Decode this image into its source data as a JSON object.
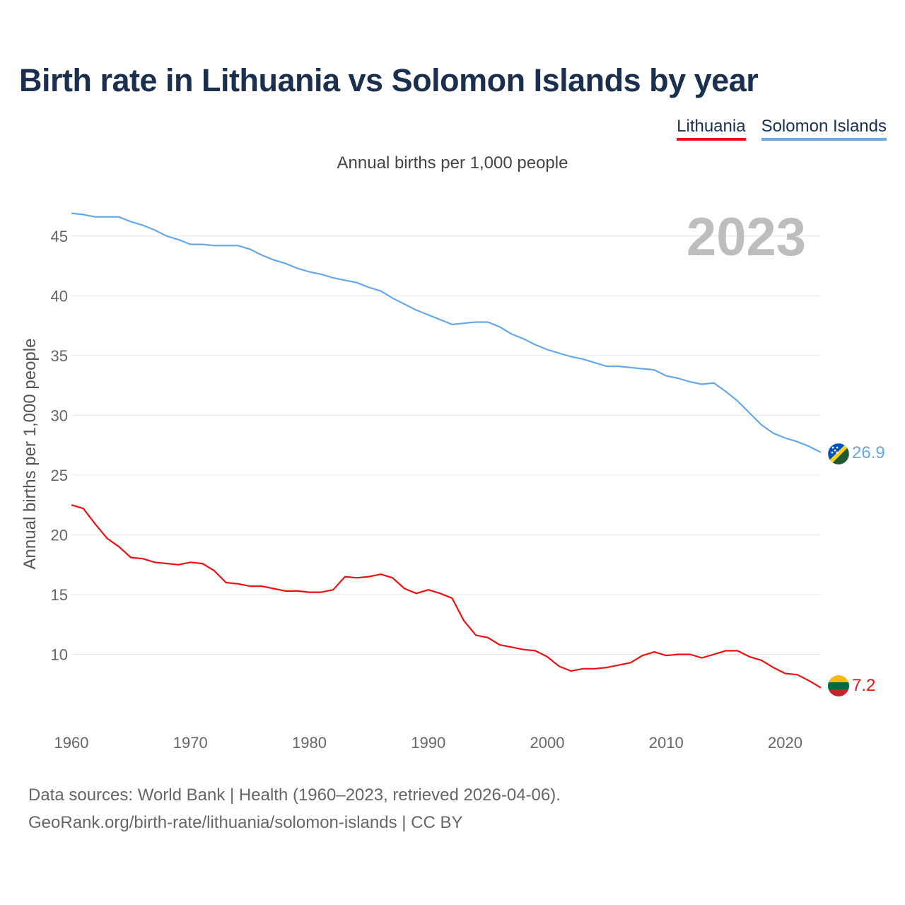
{
  "title": "Birth rate in Lithuania vs Solomon Islands by year",
  "subtitle": "Annual births per 1,000 people",
  "legend": [
    {
      "label": "Lithuania",
      "color": "#ee1111"
    },
    {
      "label": "Solomon Islands",
      "color": "#64a8e8"
    }
  ],
  "year_display": "2023",
  "footer": {
    "line1": "Data sources: World Bank | Health (1960–2023, retrieved 2026-04-06).",
    "line2": "GeoRank.org/birth-rate/lithuania/solomon-islands | CC BY"
  },
  "chart_data": {
    "type": "line",
    "title": "Birth rate in Lithuania vs Solomon Islands by year",
    "ylabel": "Annual births per 1,000 people",
    "xlabel": "",
    "xlim": [
      1960,
      2023
    ],
    "ylim": [
      5,
      47
    ],
    "xticks": [
      1960,
      1970,
      1980,
      1990,
      2000,
      2010,
      2020
    ],
    "yticks": [
      10,
      15,
      20,
      25,
      30,
      35,
      40,
      45
    ],
    "grid": true,
    "x": [
      1960,
      1961,
      1962,
      1963,
      1964,
      1965,
      1966,
      1967,
      1968,
      1969,
      1970,
      1971,
      1972,
      1973,
      1974,
      1975,
      1976,
      1977,
      1978,
      1979,
      1980,
      1981,
      1982,
      1983,
      1984,
      1985,
      1986,
      1987,
      1988,
      1989,
      1990,
      1991,
      1992,
      1993,
      1994,
      1995,
      1996,
      1997,
      1998,
      1999,
      2000,
      2001,
      2002,
      2003,
      2004,
      2005,
      2006,
      2007,
      2008,
      2009,
      2010,
      2011,
      2012,
      2013,
      2014,
      2015,
      2016,
      2017,
      2018,
      2019,
      2020,
      2021,
      2022,
      2023
    ],
    "series": [
      {
        "name": "Lithuania",
        "color": "#ee1111",
        "end_label": "7.2",
        "values": [
          22.5,
          22.2,
          20.9,
          19.7,
          19.0,
          18.1,
          18.0,
          17.7,
          17.6,
          17.5,
          17.7,
          17.6,
          17.0,
          16.0,
          15.9,
          15.7,
          15.7,
          15.5,
          15.3,
          15.3,
          15.2,
          15.2,
          15.4,
          16.5,
          16.4,
          16.5,
          16.7,
          16.4,
          15.5,
          15.1,
          15.4,
          15.1,
          14.7,
          12.8,
          11.6,
          11.4,
          10.8,
          10.6,
          10.4,
          10.3,
          9.8,
          9.0,
          8.6,
          8.8,
          8.8,
          8.9,
          9.1,
          9.3,
          9.9,
          10.2,
          9.9,
          10.0,
          10.0,
          9.7,
          10.0,
          10.3,
          10.3,
          9.8,
          9.5,
          8.9,
          8.4,
          8.3,
          7.8,
          7.2
        ]
      },
      {
        "name": "Solomon Islands",
        "color": "#64a8e8",
        "end_label": "26.9",
        "values": [
          46.9,
          46.8,
          46.6,
          46.6,
          46.6,
          46.2,
          45.9,
          45.5,
          45.0,
          44.7,
          44.3,
          44.3,
          44.2,
          44.2,
          44.2,
          43.9,
          43.4,
          43.0,
          42.7,
          42.3,
          42.0,
          41.8,
          41.5,
          41.3,
          41.1,
          40.7,
          40.4,
          39.8,
          39.3,
          38.8,
          38.4,
          38.0,
          37.6,
          37.7,
          37.8,
          37.8,
          37.4,
          36.8,
          36.4,
          35.9,
          35.5,
          35.2,
          34.9,
          34.7,
          34.4,
          34.1,
          34.1,
          34.0,
          33.9,
          33.8,
          33.3,
          33.1,
          32.8,
          32.6,
          32.7,
          32.0,
          31.2,
          30.2,
          29.2,
          28.5,
          28.1,
          27.8,
          27.4,
          26.9
        ]
      }
    ]
  }
}
